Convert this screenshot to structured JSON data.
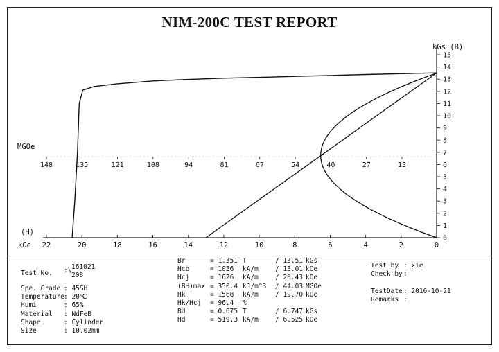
{
  "report": {
    "title": "NIM-200C TEST REPORT"
  },
  "chart_data": {
    "type": "line",
    "title": "NIM-200C TEST REPORT",
    "y_axis": {
      "label": "kGs (B)",
      "range": [
        0,
        15
      ],
      "ticks": [
        "0",
        "1",
        "2",
        "3",
        "4",
        "5",
        "6",
        "7",
        "8",
        "9",
        "10",
        "11",
        "12",
        "13",
        "14",
        "15"
      ]
    },
    "x_axis": {
      "label": "kOe",
      "range": [
        22,
        0
      ],
      "ticks": [
        "22",
        "20",
        "18",
        "16",
        "14",
        "12",
        "10",
        "8",
        "6",
        "4",
        "2",
        "0"
      ]
    },
    "h_label": "(H)",
    "energy_axis": {
      "label": "MGOe",
      "ticks": [
        "148",
        "135",
        "121",
        "108",
        "94",
        "81",
        "67",
        "54",
        "40",
        "27",
        "13"
      ]
    },
    "series": [
      {
        "kind": "demag-curve",
        "H": [
          0,
          2,
          4,
          6,
          8,
          10,
          12,
          14,
          16,
          18,
          19.3,
          19.95,
          20.15,
          20.25,
          20.4,
          20.55
        ],
        "B": [
          13.51,
          13.45,
          13.38,
          13.3,
          13.23,
          13.15,
          13.08,
          12.98,
          12.85,
          12.62,
          12.4,
          12.1,
          11.0,
          7.0,
          3.0,
          0
        ]
      },
      {
        "kind": "energy-product-curve",
        "BH_max": 44.03,
        "Bd": 6.747,
        "Br": 13.51
      },
      {
        "kind": "load-line",
        "H": [
          0,
          13.01
        ],
        "B": [
          13.51,
          0
        ]
      }
    ]
  },
  "info": {
    "test_no_label": "Test No.",
    "test_no_sep": ":\\",
    "test_no_1": "161021",
    "test_no_2": "208",
    "left_rows": [
      {
        "label": "Spe. Grade",
        "value": ": 45SH"
      },
      {
        "label": "Temperature",
        "value": ": 20℃"
      },
      {
        "label": "Humi",
        "value": ": 65%"
      },
      {
        "label": "Material",
        "value": ": NdFeB"
      },
      {
        "label": "Shape",
        "value": ": Cylinder"
      },
      {
        "label": "Size",
        "value": ": 10.02mm"
      }
    ],
    "mid_rows": [
      {
        "name": "Br",
        "val": "= 1.351",
        "unit": "T",
        "alt": "/ 13.51",
        "alt_unit": "kGs"
      },
      {
        "name": "Hcb",
        "val": "= 1036",
        "unit": "kA/m",
        "alt": "/ 13.01",
        "alt_unit": "kOe"
      },
      {
        "name": "Hcj",
        "val": "= 1626",
        "unit": "kA/m",
        "alt": "/ 20.43",
        "alt_unit": "kOe"
      },
      {
        "name": "(BH)max",
        "val": "= 350.4",
        "unit": "kJ/m^3",
        "alt": "/ 44.03",
        "alt_unit": "MGOe"
      },
      {
        "name": "Hk",
        "val": "= 1568",
        "unit": "kA/m",
        "alt": "/ 19.70",
        "alt_unit": "kOe"
      },
      {
        "name": "Hk/Hcj",
        "val": "= 96.4",
        "unit": "%",
        "alt": "",
        "alt_unit": ""
      },
      {
        "name": "Bd",
        "val": "= 0.675",
        "unit": "T",
        "alt": "/ 6.747",
        "alt_unit": "kGs"
      },
      {
        "name": "Hd",
        "val": "= 519.3",
        "unit": "kA/m",
        "alt": "/ 6.525",
        "alt_unit": "kOe"
      }
    ],
    "right_rows": [
      {
        "label": "Test by",
        "value": ": xie"
      },
      {
        "label": "Check by",
        "value": ":"
      },
      {
        "label": "",
        "value": ""
      },
      {
        "label": "TestDate",
        "value": ": 2016-10-21"
      },
      {
        "label": "Remarks",
        "value": ":"
      }
    ]
  }
}
